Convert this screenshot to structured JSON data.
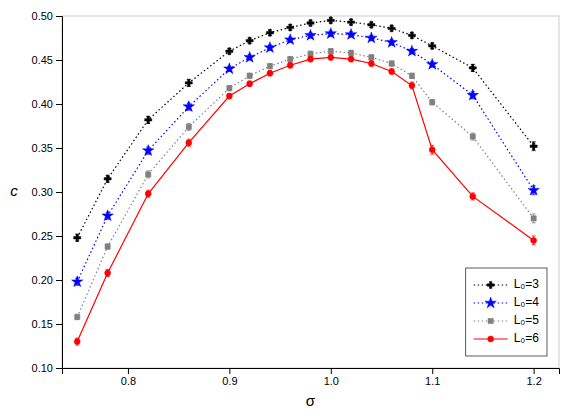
{
  "chart_data": {
    "type": "line",
    "xlabel": "σ",
    "ylabel": "c",
    "xlim": [
      0.735,
      1.225
    ],
    "ylim": [
      0.1,
      0.5
    ],
    "xticks": [
      0.8,
      0.9,
      {
        "value": 1.0,
        "label": "1.0"
      },
      1.1,
      1.2
    ],
    "yticks": [
      {
        "value": 0.1,
        "label": "0.10"
      },
      0.15,
      {
        "value": 0.2,
        "label": "0.20"
      },
      0.25,
      {
        "value": 0.3,
        "label": "0.30"
      },
      0.35,
      {
        "value": 0.4,
        "label": "0.40"
      },
      0.45,
      {
        "value": 0.5,
        "label": "0.50"
      }
    ],
    "grid": false,
    "legend": "lower right",
    "x": [
      0.75,
      0.78,
      0.82,
      0.86,
      0.9,
      0.92,
      0.94,
      0.96,
      0.98,
      1.0,
      1.02,
      1.04,
      1.06,
      1.08,
      1.1,
      1.14,
      1.2
    ],
    "series": [
      {
        "name": "L₀=3",
        "color": "black",
        "line_style": "dotted",
        "marker": "plus",
        "values": [
          0.248,
          0.315,
          0.382,
          0.424,
          0.46,
          0.472,
          0.481,
          0.487,
          0.492,
          0.495,
          0.493,
          0.49,
          0.486,
          0.478,
          0.466,
          0.441,
          0.352
        ],
        "errors": [
          0.004,
          0.004,
          0.004,
          0.004,
          0.003,
          0.003,
          0.003,
          0.003,
          0.003,
          0.003,
          0.003,
          0.003,
          0.003,
          0.003,
          0.003,
          0.004,
          0.005
        ]
      },
      {
        "name": "L₀=4",
        "color": "blue",
        "line_style": "dotted",
        "marker": "star",
        "values": [
          0.198,
          0.273,
          0.347,
          0.397,
          0.44,
          0.453,
          0.464,
          0.473,
          0.478,
          0.48,
          0.479,
          0.475,
          0.47,
          0.46,
          0.445,
          0.41,
          0.302
        ],
        "errors": [
          0.004,
          0.004,
          0.004,
          0.004,
          0.003,
          0.003,
          0.003,
          0.003,
          0.003,
          0.003,
          0.003,
          0.003,
          0.003,
          0.003,
          0.003,
          0.004,
          0.005
        ]
      },
      {
        "name": "L₀=5",
        "color": "#808080",
        "line_style": "dotted",
        "marker": "square",
        "values": [
          0.158,
          0.238,
          0.32,
          0.374,
          0.418,
          0.432,
          0.443,
          0.451,
          0.457,
          0.46,
          0.458,
          0.453,
          0.446,
          0.432,
          0.402,
          0.363,
          0.27
        ],
        "errors": [
          0.003,
          0.003,
          0.004,
          0.004,
          0.003,
          0.003,
          0.003,
          0.003,
          0.003,
          0.003,
          0.003,
          0.003,
          0.003,
          0.003,
          0.003,
          0.004,
          0.005
        ]
      },
      {
        "name": "L₀=6",
        "color": "red",
        "line_style": "solid",
        "marker": "circle",
        "values": [
          0.13,
          0.208,
          0.298,
          0.356,
          0.409,
          0.423,
          0.435,
          0.444,
          0.451,
          0.453,
          0.451,
          0.446,
          0.437,
          0.421,
          0.348,
          0.295,
          0.245
        ],
        "errors": [
          0.004,
          0.004,
          0.004,
          0.004,
          0.003,
          0.003,
          0.003,
          0.003,
          0.003,
          0.003,
          0.003,
          0.003,
          0.003,
          0.004,
          0.005,
          0.004,
          0.005
        ]
      }
    ]
  }
}
